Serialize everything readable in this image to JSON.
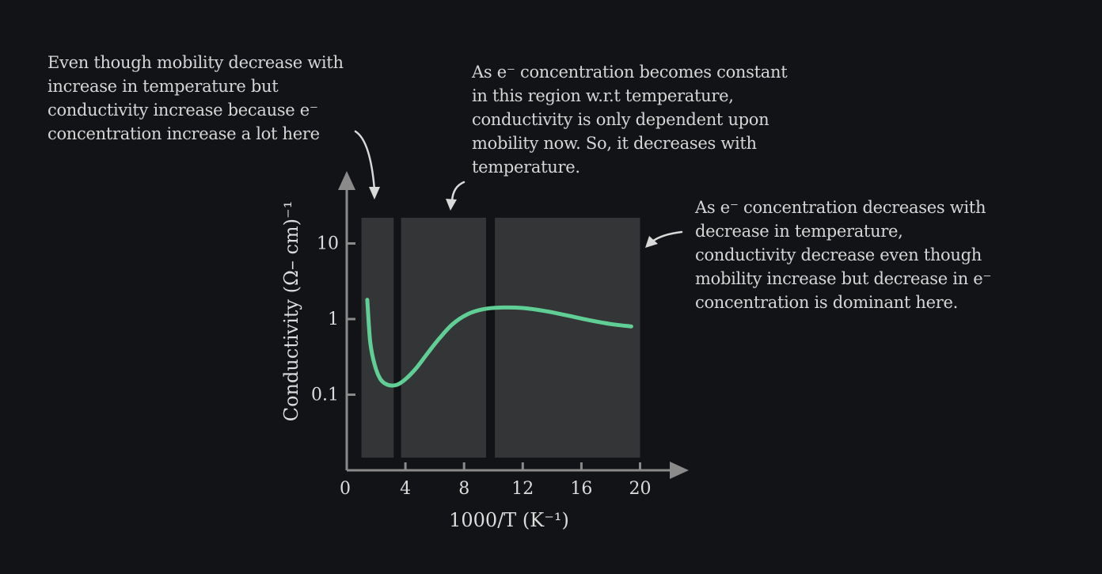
{
  "annotations": {
    "left": [
      "Even though mobility decrease with",
      "increase in temperature but",
      "conductivity increase because e⁻",
      "concentration increase a lot here"
    ],
    "middle": [
      "As e⁻ concentration becomes constant",
      "in this region w.r.t temperature,",
      "conductivity is only dependent upon",
      "mobility now. So, it decreases with",
      "temperature."
    ],
    "right": [
      "As e⁻ concentration decreases with",
      "decrease in temperature,",
      "conductivity decrease even though",
      "mobility increase but decrease in e⁻",
      "concentration is dominant here."
    ]
  },
  "colors": {
    "background": "#121316",
    "panel": "#343537",
    "curve": "#5fcf95",
    "axis": "#8a8a8a",
    "text": "#d9d9d9"
  },
  "chart_data": {
    "type": "line",
    "xlabel": "1000/T (K⁻¹)",
    "ylabel": "Conductivity (Ω– cm)⁻¹",
    "y_scale": "log",
    "x_ticks": [
      0,
      4,
      8,
      12,
      16,
      20
    ],
    "x_tick_labels": [
      "0",
      "4",
      "8",
      "12",
      "16",
      "20"
    ],
    "y_ticks": [
      0.1,
      1,
      10
    ],
    "y_tick_labels": [
      "0.1",
      "1",
      "10"
    ],
    "xlim": [
      0,
      20
    ],
    "regions_x": [
      [
        1.0,
        3.2
      ],
      [
        3.7,
        9.5
      ],
      [
        10.1,
        20.0
      ]
    ],
    "series": [
      {
        "x": [
          1.4,
          1.6,
          1.9,
          2.3,
          2.8,
          3.4,
          4.0,
          4.7,
          5.5,
          6.3,
          7.2,
          8.2,
          9.3,
          10.5,
          12.0,
          13.5,
          15.0,
          16.5,
          18.0,
          19.4
        ],
        "y": [
          1.8,
          0.5,
          0.25,
          0.16,
          0.135,
          0.135,
          0.16,
          0.22,
          0.35,
          0.55,
          0.85,
          1.15,
          1.35,
          1.42,
          1.4,
          1.28,
          1.12,
          0.97,
          0.86,
          0.8
        ]
      }
    ]
  }
}
